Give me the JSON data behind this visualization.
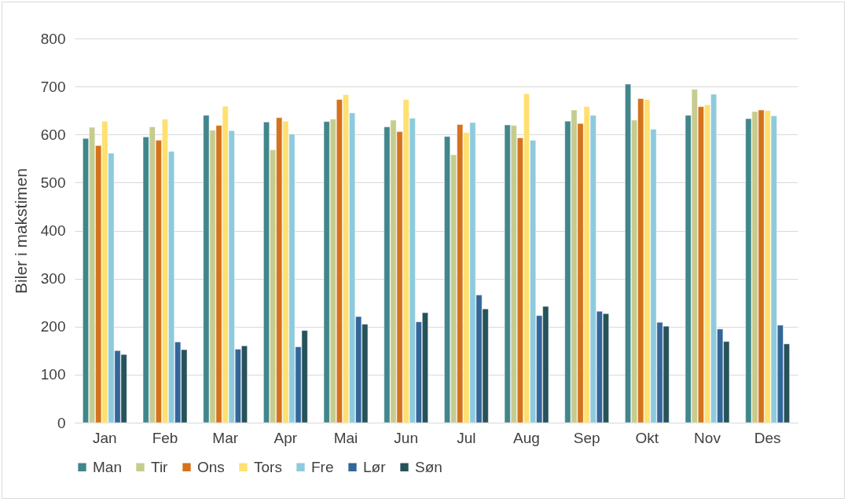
{
  "chart_data": {
    "type": "bar",
    "ylabel": "Biler i makstimen",
    "categories": [
      "Jan",
      "Feb",
      "Mar",
      "Apr",
      "Mai",
      "Jun",
      "Jul",
      "Aug",
      "Sep",
      "Okt",
      "Nov",
      "Des"
    ],
    "series": [
      {
        "name": "Man",
        "color": "#41868b",
        "values": [
          592,
          595,
          640,
          626,
          627,
          616,
          596,
          620,
          628,
          705,
          640,
          633
        ]
      },
      {
        "name": "Tir",
        "color": "#c6cc8f",
        "values": [
          615,
          616,
          609,
          568,
          632,
          630,
          558,
          619,
          651,
          630,
          694,
          648
        ]
      },
      {
        "name": "Ons",
        "color": "#d4731d",
        "values": [
          577,
          588,
          619,
          635,
          673,
          606,
          621,
          593,
          623,
          675,
          658,
          651
        ]
      },
      {
        "name": "Tors",
        "color": "#ffe070",
        "values": [
          628,
          632,
          659,
          628,
          683,
          673,
          604,
          685,
          658,
          673,
          662,
          650
        ]
      },
      {
        "name": "Fre",
        "color": "#8ecadd",
        "values": [
          561,
          565,
          608,
          601,
          645,
          634,
          625,
          588,
          640,
          611,
          684,
          639
        ]
      },
      {
        "name": "Lør",
        "color": "#336699",
        "values": [
          150,
          168,
          153,
          158,
          221,
          210,
          266,
          223,
          232,
          209,
          195,
          203
        ]
      },
      {
        "name": "Søn",
        "color": "#26525a",
        "values": [
          142,
          152,
          160,
          192,
          205,
          229,
          237,
          242,
          227,
          201,
          169,
          164
        ]
      }
    ],
    "ylim": [
      0,
      800
    ],
    "yticks": [
      0,
      100,
      200,
      300,
      400,
      500,
      600,
      700,
      800
    ],
    "grid": "y",
    "legend": "bottom"
  }
}
